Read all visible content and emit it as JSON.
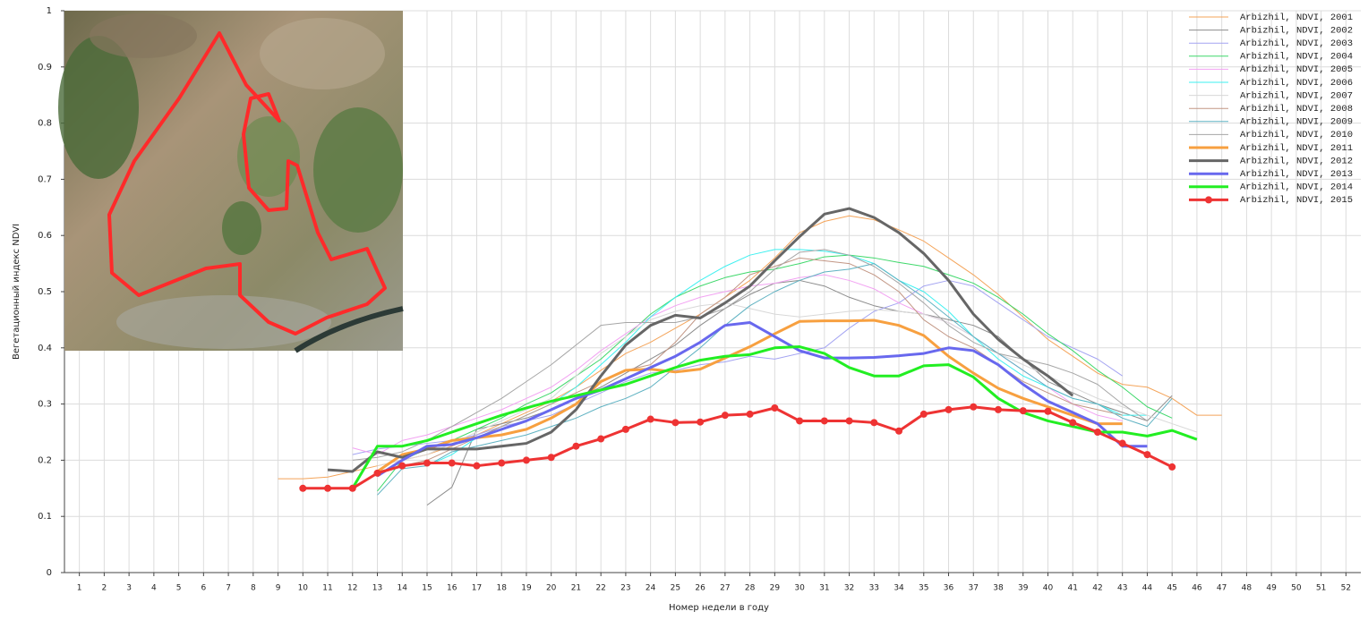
{
  "chart_data": {
    "type": "line",
    "x_label": "Номер недели в году",
    "y_label": "Вегетационный индекс NDVI",
    "x": [
      1,
      2,
      3,
      4,
      5,
      6,
      7,
      8,
      9,
      10,
      11,
      12,
      13,
      14,
      15,
      16,
      17,
      18,
      19,
      20,
      21,
      22,
      23,
      24,
      25,
      26,
      27,
      28,
      29,
      30,
      31,
      32,
      33,
      34,
      35,
      36,
      37,
      38,
      39,
      40,
      41,
      42,
      43,
      44,
      45,
      46,
      47,
      48,
      49,
      50,
      51,
      52
    ],
    "xlim": [
      0.4,
      52.6
    ],
    "xticks": [
      1,
      2,
      3,
      4,
      5,
      6,
      7,
      8,
      9,
      10,
      11,
      12,
      13,
      14,
      15,
      16,
      17,
      18,
      19,
      20,
      21,
      22,
      23,
      24,
      25,
      26,
      27,
      28,
      29,
      30,
      31,
      32,
      33,
      34,
      35,
      36,
      37,
      38,
      39,
      40,
      41,
      42,
      43,
      44,
      45,
      46,
      47,
      48,
      49,
      50,
      51,
      52
    ],
    "ylim": [
      0,
      1
    ],
    "yticks": [
      0,
      0.1,
      0.2,
      0.3,
      0.4,
      0.5,
      0.6,
      0.7,
      0.8,
      0.9,
      1
    ],
    "grid": true,
    "legend": "upper right",
    "series": [
      {
        "name": "Arbizhil, NDVI, 2001",
        "color": "#f4a45a",
        "line_width": 1,
        "values": [
          null,
          null,
          null,
          null,
          null,
          null,
          null,
          null,
          0.167,
          0.167,
          0.17,
          0.18,
          0.19,
          0.2,
          0.21,
          0.225,
          0.245,
          0.265,
          0.285,
          0.305,
          0.33,
          0.36,
          0.39,
          0.41,
          0.435,
          0.46,
          0.49,
          0.52,
          0.56,
          0.605,
          0.625,
          0.635,
          0.628,
          0.61,
          0.59,
          0.56,
          0.53,
          0.495,
          0.455,
          0.415,
          0.385,
          0.355,
          0.335,
          0.33,
          0.31,
          0.28,
          0.28,
          null,
          null,
          null,
          null,
          null
        ]
      },
      {
        "name": "Arbizhil, NDVI, 2002",
        "color": "#8c8c8c",
        "line_width": 1,
        "values": [
          null,
          null,
          null,
          null,
          null,
          null,
          null,
          null,
          null,
          null,
          null,
          null,
          null,
          null,
          0.12,
          0.152,
          0.255,
          0.265,
          0.275,
          0.29,
          0.31,
          0.33,
          0.355,
          0.38,
          0.405,
          0.44,
          0.47,
          0.495,
          0.515,
          0.52,
          0.51,
          0.49,
          0.475,
          0.465,
          0.46,
          0.45,
          0.44,
          0.42,
          0.38,
          0.34,
          0.32,
          0.3,
          0.285,
          0.27,
          0.315,
          null,
          null,
          null,
          null,
          null,
          null,
          null
        ]
      },
      {
        "name": "Arbizhil, NDVI, 2003",
        "color": "#a4a4f2",
        "line_width": 1,
        "values": [
          null,
          null,
          null,
          null,
          null,
          null,
          null,
          null,
          null,
          null,
          null,
          0.21,
          0.22,
          0.225,
          0.23,
          0.235,
          0.245,
          0.26,
          0.27,
          0.28,
          0.3,
          0.32,
          0.34,
          0.355,
          0.36,
          0.37,
          0.375,
          0.385,
          0.38,
          0.39,
          0.4,
          0.435,
          0.465,
          0.48,
          0.51,
          0.52,
          0.51,
          0.48,
          0.45,
          0.42,
          0.4,
          0.38,
          0.35,
          null,
          null,
          null,
          null,
          null,
          null,
          null,
          null,
          null
        ]
      },
      {
        "name": "Arbizhil, NDVI, 2004",
        "color": "#3ed86a",
        "line_width": 1,
        "values": [
          null,
          null,
          null,
          null,
          null,
          null,
          null,
          null,
          null,
          null,
          null,
          null,
          0.145,
          0.2,
          0.22,
          0.235,
          0.255,
          0.275,
          0.3,
          0.32,
          0.35,
          0.38,
          0.42,
          0.46,
          0.49,
          0.51,
          0.525,
          0.535,
          0.54,
          0.55,
          0.562,
          0.565,
          0.56,
          0.552,
          0.545,
          0.53,
          0.515,
          0.49,
          0.46,
          0.425,
          0.395,
          0.36,
          0.33,
          0.295,
          0.275,
          null,
          null,
          null,
          null,
          null,
          null,
          null
        ]
      },
      {
        "name": "Arbizhil, NDVI, 2005",
        "color": "#f2a2f2",
        "line_width": 1,
        "values": [
          null,
          null,
          null,
          null,
          null,
          null,
          null,
          null,
          null,
          null,
          null,
          0.222,
          0.21,
          0.235,
          0.245,
          0.26,
          0.275,
          0.29,
          0.31,
          0.33,
          0.36,
          0.395,
          0.425,
          0.455,
          0.475,
          0.49,
          0.5,
          0.51,
          0.515,
          0.525,
          0.53,
          0.52,
          0.505,
          0.48,
          0.46,
          0.445,
          0.42,
          0.39,
          0.36,
          0.33,
          0.3,
          0.28,
          0.27,
          null,
          null,
          null,
          null,
          null,
          null,
          null,
          null,
          null
        ]
      },
      {
        "name": "Arbizhil, NDVI, 2006",
        "color": "#3ef0f0",
        "line_width": 1,
        "values": [
          null,
          null,
          null,
          null,
          null,
          null,
          null,
          null,
          null,
          null,
          null,
          null,
          null,
          null,
          0.19,
          0.21,
          0.24,
          0.26,
          0.28,
          0.3,
          0.33,
          0.37,
          0.41,
          0.455,
          0.49,
          0.52,
          0.545,
          0.565,
          0.575,
          0.575,
          0.572,
          0.565,
          0.55,
          0.52,
          0.5,
          0.465,
          0.42,
          0.38,
          0.35,
          0.33,
          0.31,
          0.3,
          0.28,
          0.28,
          null,
          null,
          null,
          null,
          null,
          null,
          null,
          null
        ]
      },
      {
        "name": "Arbizhil, NDVI, 2007",
        "color": "#d8d8d8",
        "line_width": 1,
        "values": [
          null,
          null,
          null,
          null,
          null,
          null,
          null,
          null,
          null,
          null,
          null,
          null,
          0.19,
          0.2,
          0.21,
          0.23,
          0.25,
          0.27,
          0.29,
          0.31,
          0.35,
          0.39,
          0.42,
          0.45,
          0.465,
          0.475,
          0.48,
          0.47,
          0.46,
          0.455,
          0.46,
          0.465,
          0.468,
          0.465,
          0.46,
          0.445,
          0.42,
          0.39,
          0.37,
          0.35,
          0.33,
          0.31,
          0.295,
          0.28,
          0.265,
          0.25,
          null,
          null,
          null,
          null,
          null,
          null
        ]
      },
      {
        "name": "Arbizhil, NDVI, 2008",
        "color": "#c29684",
        "line_width": 1,
        "values": [
          null,
          null,
          null,
          null,
          null,
          null,
          null,
          null,
          null,
          null,
          null,
          null,
          0.18,
          0.19,
          0.2,
          0.22,
          0.24,
          0.26,
          0.28,
          0.3,
          0.32,
          0.34,
          0.36,
          0.37,
          0.41,
          0.46,
          0.49,
          0.53,
          0.545,
          0.56,
          0.555,
          0.55,
          0.53,
          0.5,
          0.45,
          0.42,
          0.4,
          0.37,
          0.34,
          0.32,
          0.3,
          0.29,
          0.28,
          null,
          null,
          null,
          null,
          null,
          null,
          null,
          null,
          null
        ]
      },
      {
        "name": "Arbizhil, NDVI, 2009",
        "color": "#5fb2c2",
        "line_width": 1,
        "values": [
          null,
          null,
          null,
          null,
          null,
          null,
          null,
          null,
          null,
          null,
          null,
          null,
          0.138,
          0.185,
          0.19,
          0.215,
          0.225,
          0.235,
          0.245,
          0.26,
          0.275,
          0.295,
          0.31,
          0.33,
          0.365,
          0.4,
          0.44,
          0.475,
          0.5,
          0.52,
          0.535,
          0.54,
          0.55,
          0.52,
          0.49,
          0.455,
          0.42,
          0.39,
          0.36,
          0.33,
          0.31,
          0.3,
          0.275,
          0.26,
          0.31,
          null,
          null,
          null,
          null,
          null,
          null,
          null
        ]
      },
      {
        "name": "Arbizhil, NDVI, 2010",
        "color": "#a6a6a6",
        "line_width": 1,
        "values": [
          null,
          null,
          null,
          null,
          null,
          null,
          null,
          null,
          null,
          null,
          null,
          0.2,
          0.205,
          0.215,
          0.235,
          0.26,
          0.285,
          0.31,
          0.34,
          0.37,
          0.405,
          0.44,
          0.445,
          0.445,
          0.445,
          0.455,
          0.47,
          0.5,
          0.54,
          0.57,
          0.575,
          0.565,
          0.545,
          0.515,
          0.48,
          0.44,
          0.41,
          0.39,
          0.38,
          0.37,
          0.355,
          0.335,
          0.3,
          0.27,
          null,
          null,
          null,
          null,
          null,
          null,
          null,
          null
        ]
      },
      {
        "name": "Arbizhil, NDVI, 2011",
        "color": "#f7a040",
        "line_width": 3,
        "values": [
          null,
          null,
          null,
          null,
          null,
          null,
          null,
          null,
          null,
          null,
          null,
          null,
          0.18,
          0.21,
          0.22,
          0.235,
          0.24,
          0.245,
          0.255,
          0.275,
          0.3,
          0.34,
          0.36,
          0.362,
          0.357,
          0.362,
          0.382,
          0.402,
          0.425,
          0.447,
          0.448,
          0.448,
          0.449,
          0.44,
          0.422,
          0.385,
          0.355,
          0.328,
          0.31,
          0.295,
          0.28,
          0.265,
          0.265,
          null,
          null,
          null,
          null,
          null,
          null,
          null,
          null,
          null
        ]
      },
      {
        "name": "Arbizhil, NDVI, 2012",
        "color": "#666666",
        "line_width": 3,
        "values": [
          null,
          null,
          null,
          null,
          null,
          null,
          null,
          null,
          null,
          null,
          0.183,
          0.18,
          0.215,
          0.205,
          0.22,
          0.22,
          0.22,
          0.225,
          0.23,
          0.25,
          0.29,
          0.35,
          0.405,
          0.44,
          0.458,
          0.453,
          0.48,
          0.51,
          0.555,
          0.598,
          0.638,
          0.648,
          0.632,
          0.605,
          0.568,
          0.52,
          0.46,
          0.415,
          0.38,
          0.35,
          0.315,
          null,
          null,
          null,
          null,
          null,
          null,
          null,
          null,
          null,
          null,
          null
        ]
      },
      {
        "name": "Arbizhil, NDVI, 2013",
        "color": "#6868ee",
        "line_width": 3,
        "values": [
          null,
          null,
          null,
          null,
          null,
          null,
          null,
          null,
          null,
          null,
          null,
          null,
          0.172,
          0.2,
          0.225,
          0.228,
          0.24,
          0.255,
          0.27,
          0.29,
          0.31,
          0.325,
          0.345,
          0.365,
          0.385,
          0.41,
          0.44,
          0.445,
          0.42,
          0.395,
          0.382,
          0.382,
          0.383,
          0.386,
          0.39,
          0.4,
          0.395,
          0.37,
          0.335,
          0.305,
          0.285,
          0.265,
          0.225,
          0.225,
          null,
          null,
          null,
          null,
          null,
          null,
          null,
          null
        ]
      },
      {
        "name": "Arbizhil, NDVI, 2014",
        "color": "#22ee22",
        "line_width": 3,
        "values": [
          null,
          null,
          null,
          null,
          null,
          null,
          null,
          null,
          null,
          null,
          null,
          0.15,
          0.225,
          0.225,
          0.235,
          0.25,
          0.265,
          0.28,
          0.293,
          0.305,
          0.315,
          0.325,
          0.335,
          0.35,
          0.365,
          0.378,
          0.385,
          0.388,
          0.4,
          0.402,
          0.39,
          0.365,
          0.35,
          0.35,
          0.368,
          0.37,
          0.348,
          0.31,
          0.285,
          0.27,
          0.26,
          0.25,
          0.25,
          0.243,
          0.253,
          0.237,
          null,
          null,
          null,
          null,
          null,
          null
        ]
      },
      {
        "name": "Arbizhil, NDVI, 2015",
        "color": "#ee3333",
        "line_width": 3,
        "marker": true,
        "values": [
          null,
          null,
          null,
          null,
          null,
          null,
          null,
          null,
          null,
          0.15,
          0.15,
          0.15,
          0.177,
          0.19,
          0.195,
          0.195,
          0.19,
          0.195,
          0.2,
          0.205,
          0.225,
          0.238,
          0.255,
          0.273,
          0.267,
          0.268,
          0.28,
          0.282,
          0.293,
          0.27,
          0.27,
          0.27,
          0.267,
          0.252,
          0.282,
          0.29,
          0.295,
          0.29,
          0.288,
          0.287,
          0.267,
          0.25,
          0.23,
          0.21,
          0.188,
          null,
          null,
          null,
          null,
          null,
          null,
          null
        ]
      }
    ]
  }
}
